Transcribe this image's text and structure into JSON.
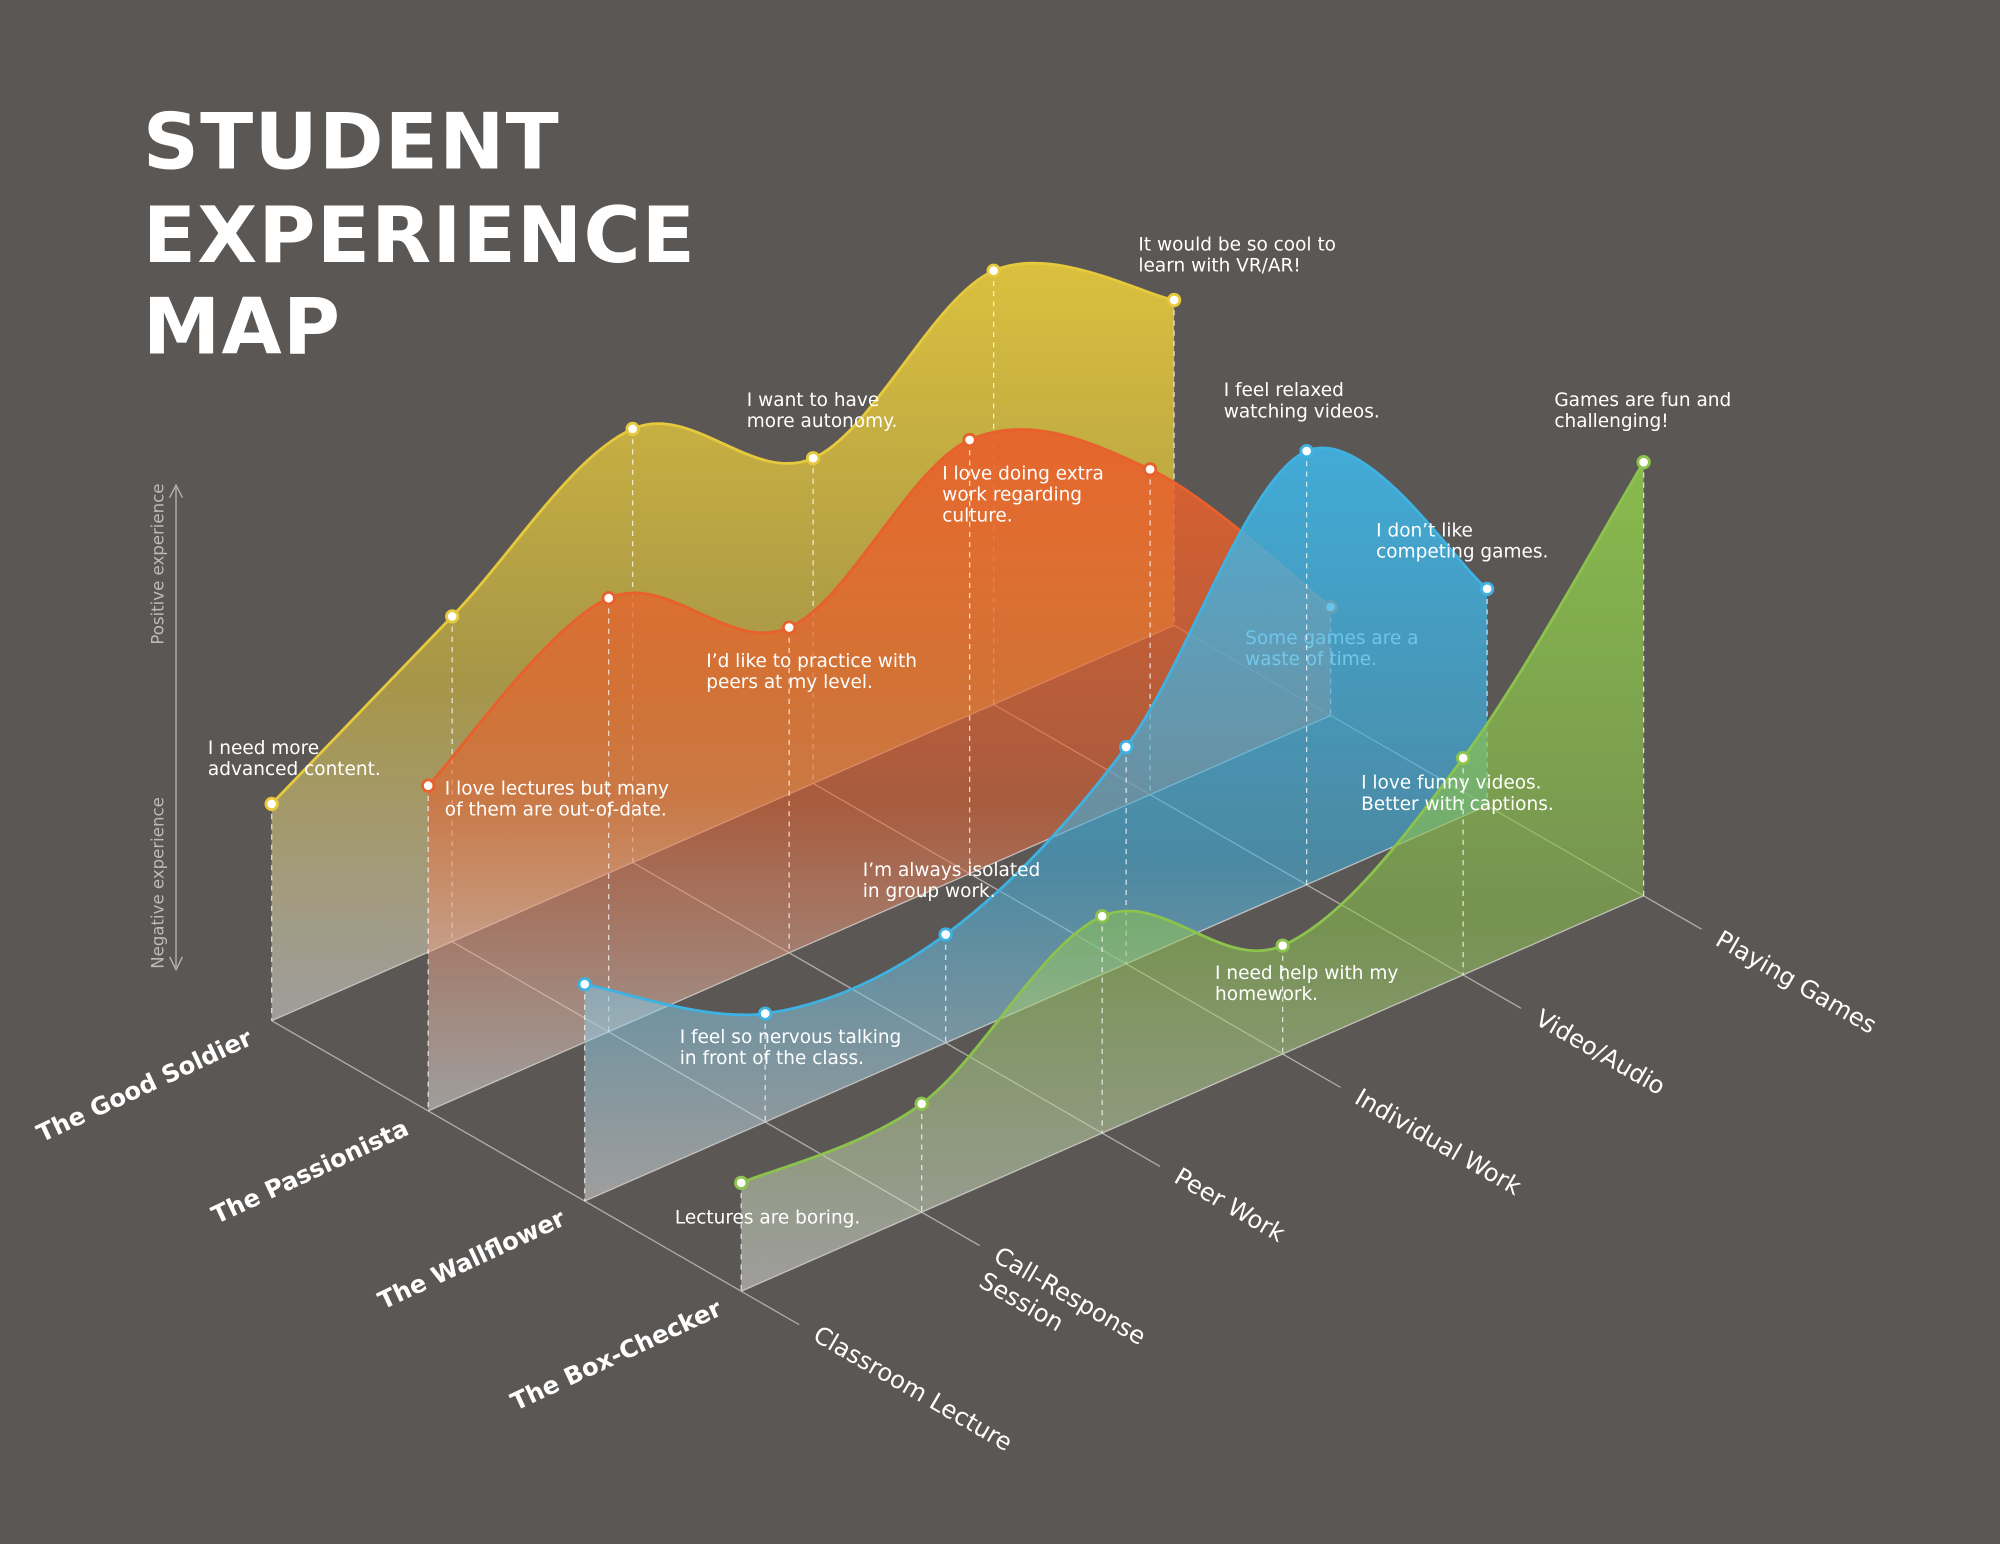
{
  "chart_data": {
    "type": "isometric-line",
    "title": [
      "STUDENT",
      "EXPERIENCE",
      "MAP"
    ],
    "y_axis": {
      "positive": "Positive experience",
      "negative": "Negative experience"
    },
    "categories": [
      [
        "Classroom Lecture"
      ],
      [
        "Call-Response",
        "Session"
      ],
      [
        "Peer Work"
      ],
      [
        "Individual Work"
      ],
      [
        "Video/Audio"
      ],
      [
        "Playing Games"
      ]
    ],
    "series": [
      {
        "name": "The Good Soldier",
        "color": "#e6c93c",
        "values": [
          2,
          3,
          4,
          3,
          4,
          3
        ],
        "notes": [
          [
            "I need more",
            "advanced content."
          ],
          null,
          null,
          [
            "I want to have",
            "more autonomy."
          ],
          null,
          [
            "It would be so cool to",
            "learn with VR/AR!"
          ]
        ]
      },
      {
        "name": "The Passionista",
        "color": "#e8602c",
        "values": [
          3,
          4,
          3,
          4,
          3,
          1
        ],
        "notes": [
          [
            "I love lectures but many",
            "of them are out-of-date."
          ],
          null,
          [
            "I’d like to practice with",
            "peers at my level."
          ],
          null,
          [
            "I love doing extra",
            "work regarding",
            "culture."
          ],
          [
            "Some games are a",
            "waste of time."
          ]
        ]
      },
      {
        "name": "The Wallflower",
        "color": "#3fb2e2",
        "values": [
          2,
          1,
          1,
          2,
          4,
          2
        ],
        "notes": [
          null,
          [
            "I feel so nervous talking",
            "in front of the class."
          ],
          [
            "I’m always isolated",
            "in group work."
          ],
          null,
          [
            "I feel relaxed",
            "watching videos."
          ],
          [
            "I don’t like",
            "competing games."
          ]
        ]
      },
      {
        "name": "The Box-Checker",
        "color": "#8cc34c",
        "values": [
          1,
          1,
          2,
          1,
          2,
          4
        ],
        "notes": [
          [
            "Lectures are boring."
          ],
          null,
          null,
          [
            "I need help with my",
            "homework."
          ],
          [
            "I love funny videos.",
            "Better with captions."
          ],
          [
            "Games are fun and",
            "challenging!"
          ]
        ]
      }
    ]
  }
}
